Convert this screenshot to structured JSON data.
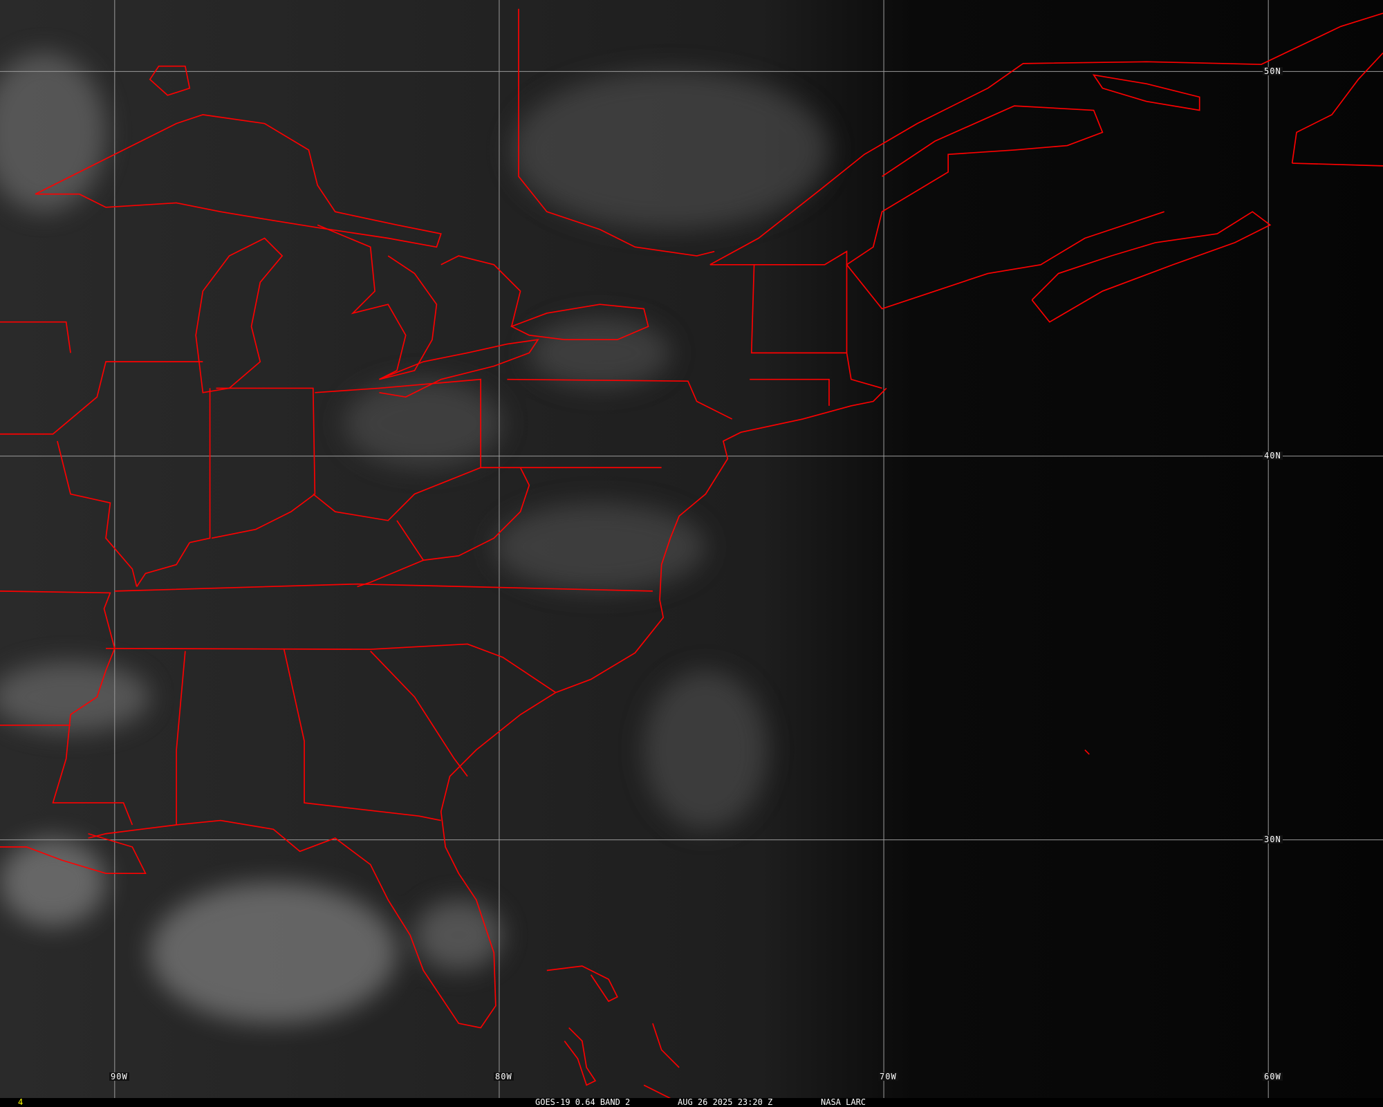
{
  "image": {
    "type": "satellite-visible-imagery",
    "overlay_color": "#ff0000",
    "grid_color": "#9a9a9a",
    "longitude_labels": [
      "90W",
      "80W",
      "70W",
      "60W"
    ],
    "latitude_labels": [
      "50N",
      "40N",
      "30N"
    ]
  },
  "caption": {
    "frame_number": "4",
    "frame_number_color": "#ffff00",
    "product": "GOES-19 0.64 BAND 2",
    "datetime": "AUG 26 2025 23:20 Z",
    "source": "NASA LARC"
  }
}
